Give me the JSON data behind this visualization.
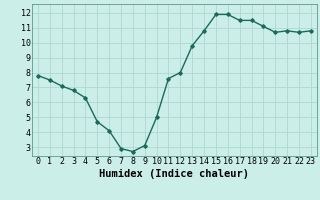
{
  "x": [
    0,
    1,
    2,
    3,
    4,
    5,
    6,
    7,
    8,
    9,
    10,
    11,
    12,
    13,
    14,
    15,
    16,
    17,
    18,
    19,
    20,
    21,
    22,
    23
  ],
  "y": [
    7.8,
    7.5,
    7.1,
    6.8,
    6.3,
    4.7,
    4.1,
    2.9,
    2.7,
    3.1,
    5.0,
    7.6,
    8.0,
    9.8,
    10.8,
    11.9,
    11.9,
    11.5,
    11.5,
    11.1,
    10.7,
    10.8,
    10.7,
    10.8
  ],
  "xlabel": "Humidex (Indice chaleur)",
  "ylim": [
    2.4,
    12.6
  ],
  "xlim": [
    -0.5,
    23.5
  ],
  "yticks": [
    3,
    4,
    5,
    6,
    7,
    8,
    9,
    10,
    11,
    12
  ],
  "xticks": [
    0,
    1,
    2,
    3,
    4,
    5,
    6,
    7,
    8,
    9,
    10,
    11,
    12,
    13,
    14,
    15,
    16,
    17,
    18,
    19,
    20,
    21,
    22,
    23
  ],
  "line_color": "#1a6b5a",
  "marker": "D",
  "marker_size": 1.8,
  "line_width": 1.0,
  "bg_color": "#cceee8",
  "grid_color": "#b0d8d0",
  "tick_label_fontsize": 6.0,
  "xlabel_fontsize": 7.5
}
